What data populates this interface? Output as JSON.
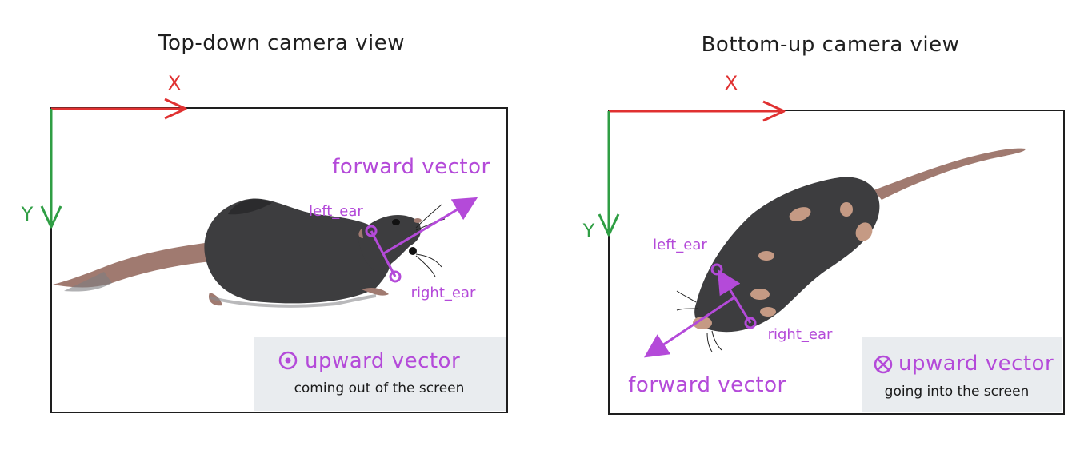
{
  "colors": {
    "x_axis": "#e03131",
    "y_axis": "#2f9e44",
    "vector": "#b44ad9",
    "frame": "#1e1e1e",
    "note_bg": "#e9ecef",
    "mouse_body": "#3d3d3f",
    "mouse_tail": "#a07a70"
  },
  "left_panel": {
    "title": "Top-down camera view",
    "x_label": "X",
    "y_label": "Y",
    "forward_label": "forward vector",
    "left_ear_label": "left_ear",
    "right_ear_label": "right_ear",
    "upward_label": "upward vector",
    "upward_note": "coming out of the screen",
    "upward_icon": "dot-in-circle-icon"
  },
  "right_panel": {
    "title": "Bottom-up camera view",
    "x_label": "X",
    "y_label": "Y",
    "forward_label": "forward vector",
    "left_ear_label": "left_ear",
    "right_ear_label": "right_ear",
    "upward_label": "upward vector",
    "upward_note": "going into the screen",
    "upward_icon": "cross-in-circle-icon"
  }
}
